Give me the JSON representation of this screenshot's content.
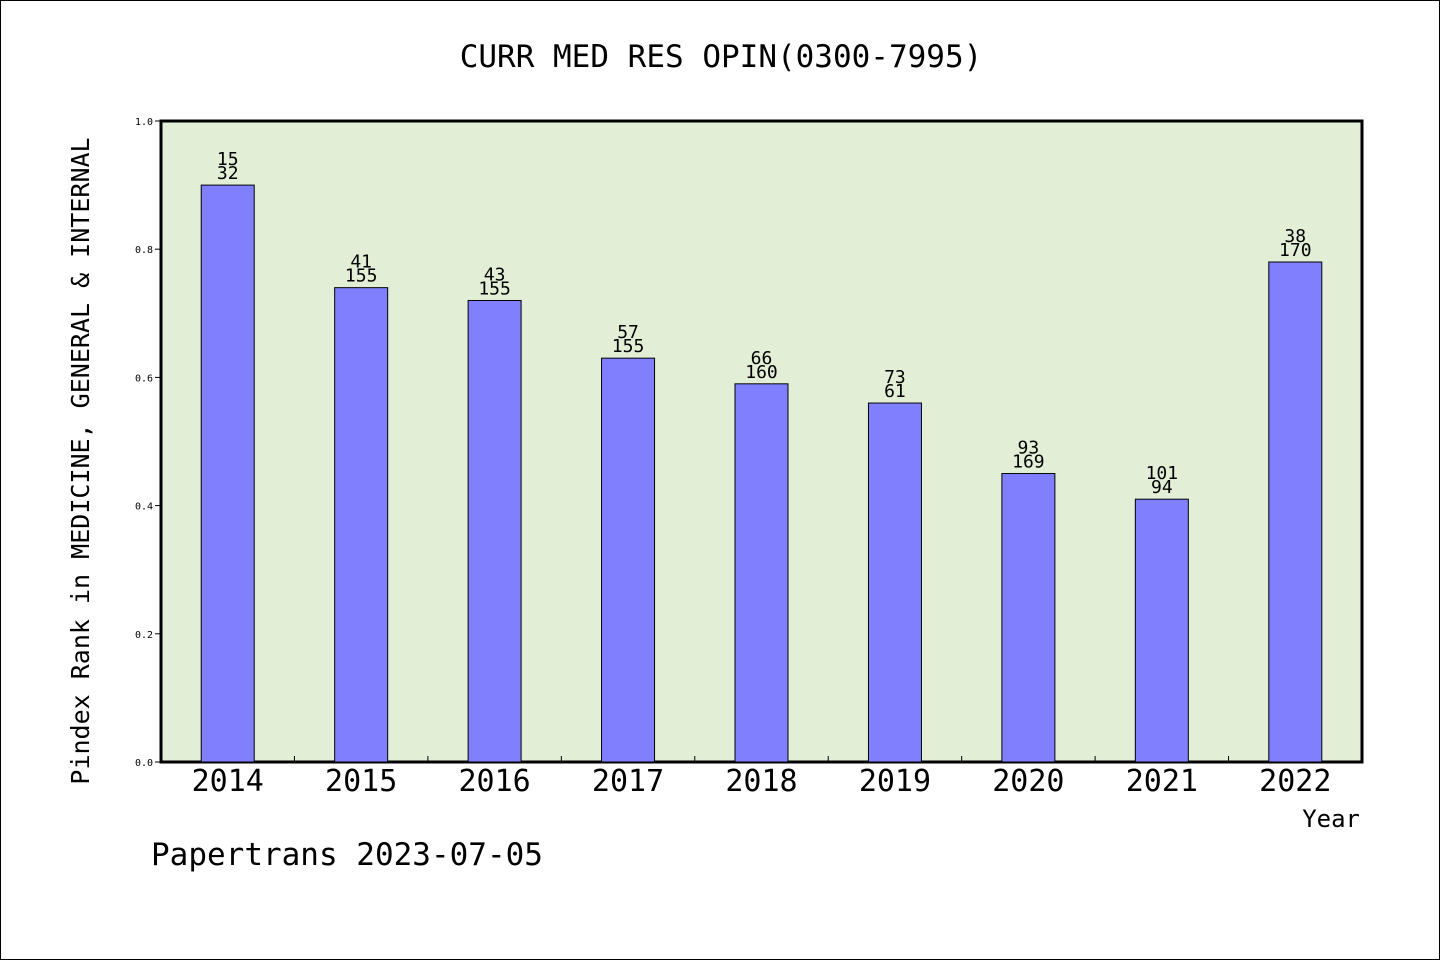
{
  "chart_data": {
    "type": "bar",
    "title": "CURR MED RES OPIN(0300-7995)",
    "xlabel": "Year",
    "ylabel": "Pindex Rank in MEDICINE, GENERAL & INTERNAL",
    "categories": [
      "2014",
      "2015",
      "2016",
      "2017",
      "2018",
      "2019",
      "2020",
      "2021",
      "2022"
    ],
    "values": [
      0.9,
      0.74,
      0.72,
      0.63,
      0.59,
      0.56,
      0.45,
      0.41,
      0.78
    ],
    "labels_top": [
      "15",
      "41",
      "43",
      "57",
      "66",
      "73",
      "93",
      "101",
      "38"
    ],
    "labels_bottom": [
      "32",
      "155",
      "155",
      "155",
      "160",
      "61",
      "169",
      "94",
      "170"
    ],
    "ylim": [
      0,
      1.0
    ],
    "yticks": [
      "0.0",
      "0.2",
      "0.4",
      "0.6",
      "0.8",
      "1.0"
    ],
    "grid": false,
    "colors": {
      "bar": "#8080ff",
      "plot_background": "#e2efd6"
    }
  },
  "footer": {
    "text": "Papertrans 2023-07-05"
  }
}
